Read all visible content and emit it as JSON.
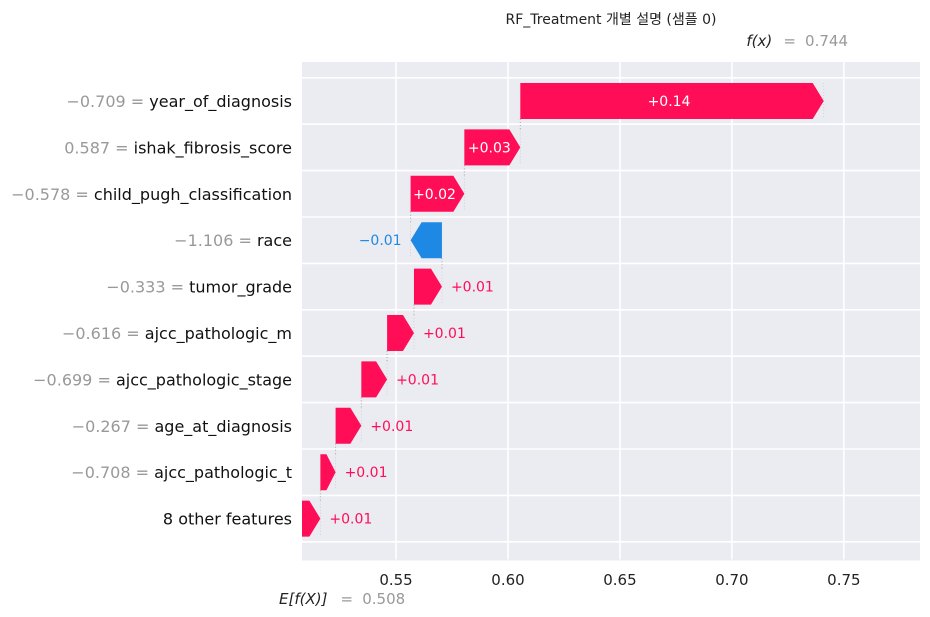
{
  "chart_data": {
    "type": "waterfall",
    "title": "RF_Treatment 개별 설명 (샘플 0)",
    "fx_label": "f(x)",
    "fx_value": "0.744",
    "base_label": "E[f(X)]",
    "base_value": "0.508",
    "base": 0.508,
    "final": 0.744,
    "xlim": [
      0.508,
      0.784
    ],
    "xticks": [
      0.55,
      0.6,
      0.65,
      0.7,
      0.75
    ],
    "xtick_labels": [
      "0.55",
      "0.60",
      "0.65",
      "0.70",
      "0.75"
    ],
    "grid": true,
    "colors": {
      "positive": "#ff0d57",
      "negative": "#1e88e5",
      "background": "#ebebf2",
      "value_text": "#999999"
    },
    "features": [
      {
        "value": "−0.709",
        "name": "year_of_diagnosis",
        "contribution": 0.1355,
        "label": "+0.14"
      },
      {
        "value": "0.587",
        "name": "ishak_fibrosis_score",
        "contribution": 0.025,
        "label": "+0.03"
      },
      {
        "value": "−0.578",
        "name": "child_pugh_classification",
        "contribution": 0.024,
        "label": "+0.02"
      },
      {
        "value": "−1.106",
        "name": "race",
        "contribution": -0.014,
        "label": "−0.01"
      },
      {
        "value": "−0.333",
        "name": "tumor_grade",
        "contribution": 0.0125,
        "label": "+0.01"
      },
      {
        "value": "−0.616",
        "name": "ajcc_pathologic_m",
        "contribution": 0.012,
        "label": "+0.01"
      },
      {
        "value": "−0.699",
        "name": "ajcc_pathologic_stage",
        "contribution": 0.0115,
        "label": "+0.01"
      },
      {
        "value": "−0.267",
        "name": "age_at_diagnosis",
        "contribution": 0.0115,
        "label": "+0.01"
      },
      {
        "value": "−0.708",
        "name": "ajcc_pathologic_t",
        "contribution": 0.0068,
        "label": "+0.01"
      },
      {
        "value": "",
        "name": "8 other features",
        "contribution": 0.0082,
        "label": "+0.01"
      }
    ]
  }
}
